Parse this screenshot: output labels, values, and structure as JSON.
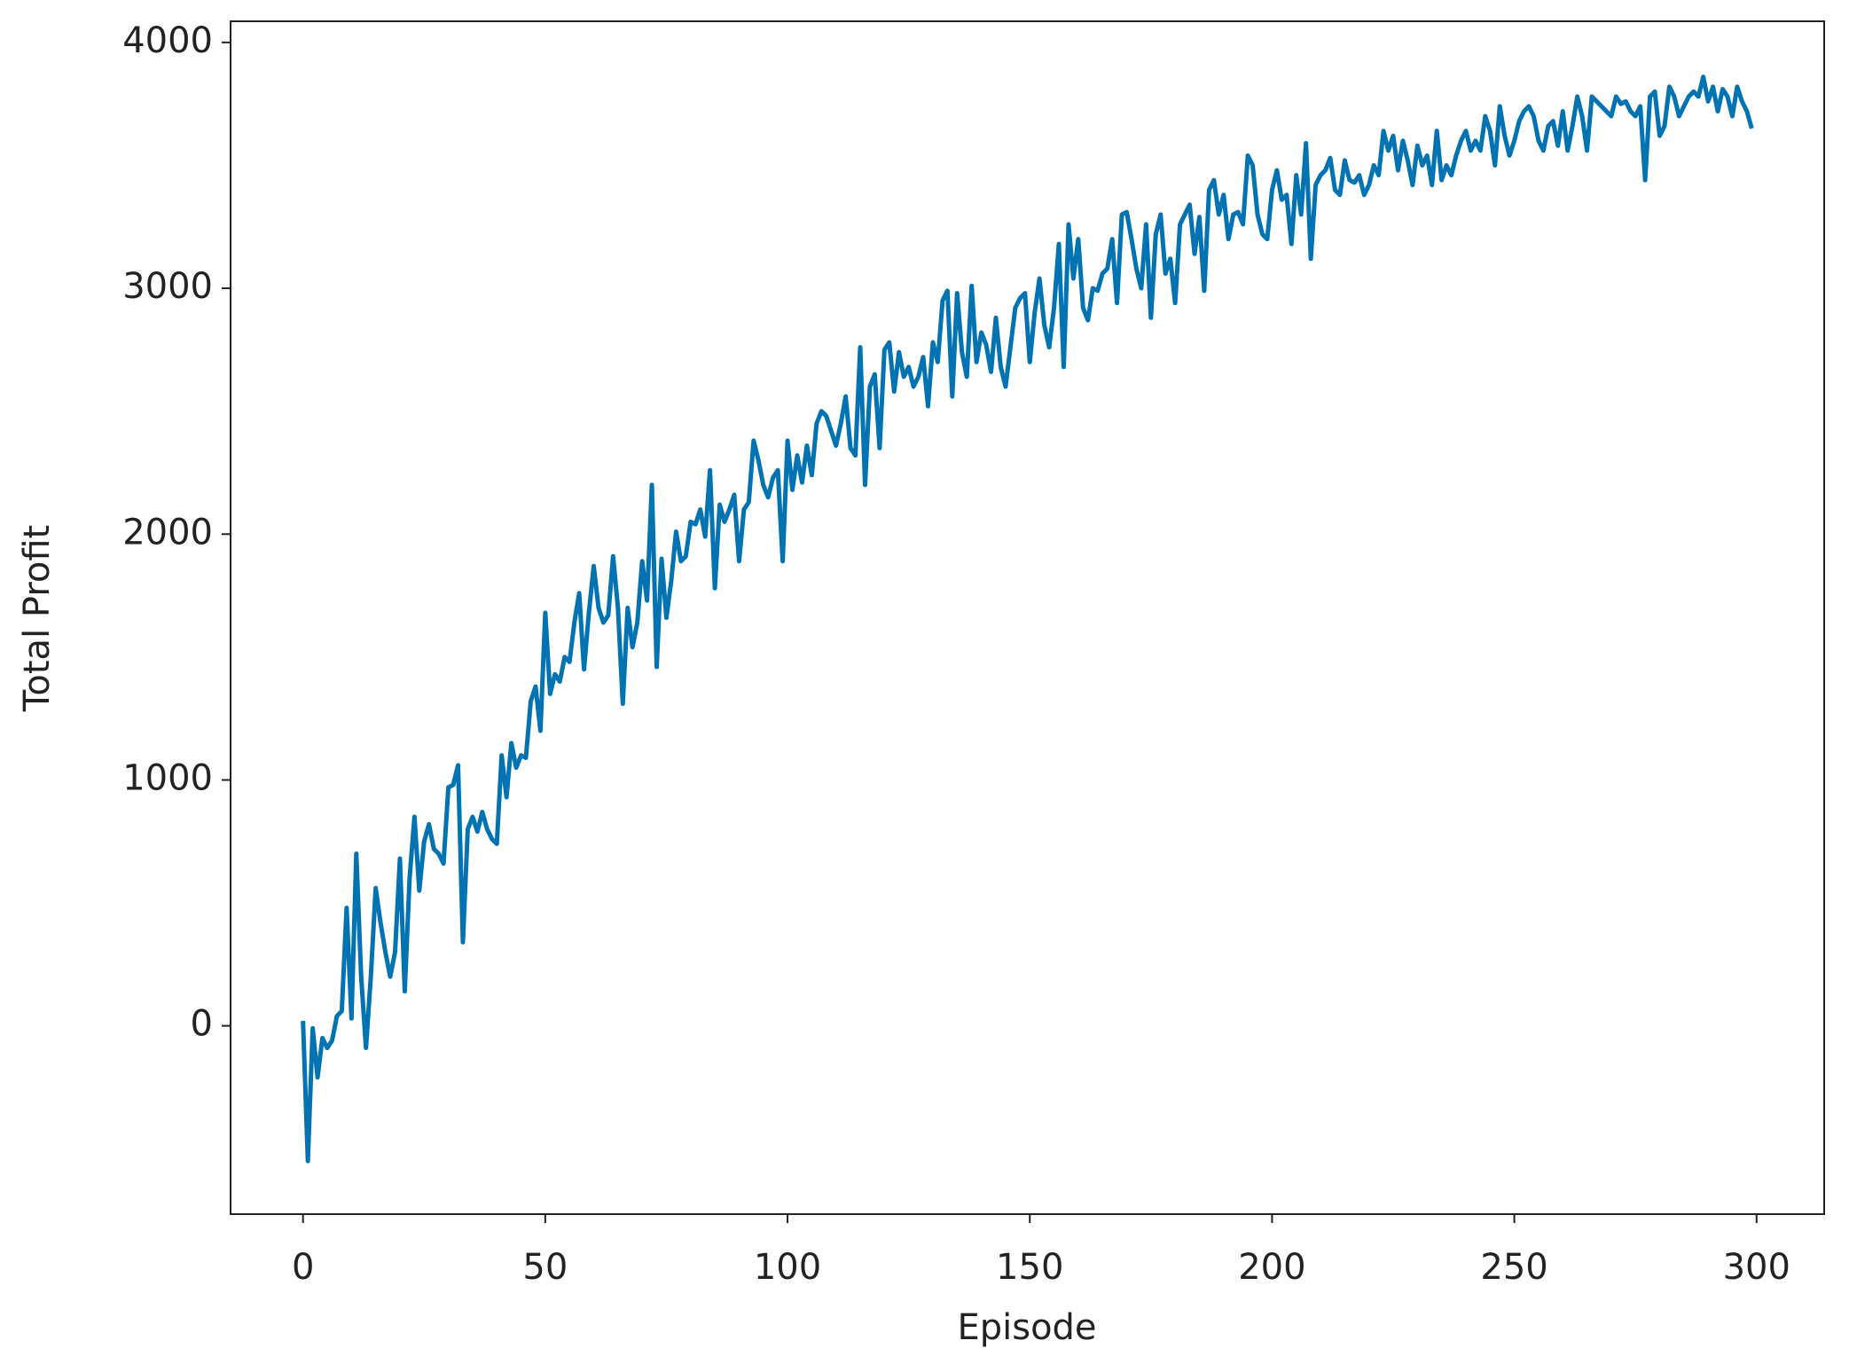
{
  "chart_data": {
    "type": "line",
    "x_label": "Episode",
    "y_label": "Total Profit",
    "x": [
      0,
      1,
      2,
      3,
      4,
      5,
      6,
      7,
      8,
      9,
      10,
      11,
      12,
      13,
      14,
      15,
      16,
      17,
      18,
      19,
      20,
      21,
      22,
      23,
      24,
      25,
      26,
      27,
      28,
      29,
      30,
      31,
      32,
      33,
      34,
      35,
      36,
      37,
      38,
      39,
      40,
      41,
      42,
      43,
      44,
      45,
      46,
      47,
      48,
      49,
      50,
      51,
      52,
      53,
      54,
      55,
      56,
      57,
      58,
      59,
      60,
      61,
      62,
      63,
      64,
      65,
      66,
      67,
      68,
      69,
      70,
      71,
      72,
      73,
      74,
      75,
      76,
      77,
      78,
      79,
      80,
      81,
      82,
      83,
      84,
      85,
      86,
      87,
      88,
      89,
      90,
      91,
      92,
      93,
      94,
      95,
      96,
      97,
      98,
      99,
      100,
      101,
      102,
      103,
      104,
      105,
      106,
      107,
      108,
      109,
      110,
      111,
      112,
      113,
      114,
      115,
      116,
      117,
      118,
      119,
      120,
      121,
      122,
      123,
      124,
      125,
      126,
      127,
      128,
      129,
      130,
      131,
      132,
      133,
      134,
      135,
      136,
      137,
      138,
      139,
      140,
      141,
      142,
      143,
      144,
      145,
      146,
      147,
      148,
      149,
      150,
      151,
      152,
      153,
      154,
      155,
      156,
      157,
      158,
      159,
      160,
      161,
      162,
      163,
      164,
      165,
      166,
      167,
      168,
      169,
      170,
      171,
      172,
      173,
      174,
      175,
      176,
      177,
      178,
      179,
      180,
      181,
      182,
      183,
      184,
      185,
      186,
      187,
      188,
      189,
      190,
      191,
      192,
      193,
      194,
      195,
      196,
      197,
      198,
      199,
      200,
      201,
      202,
      203,
      204,
      205,
      206,
      207,
      208,
      209,
      210,
      211,
      212,
      213,
      214,
      215,
      216,
      217,
      218,
      219,
      220,
      221,
      222,
      223,
      224,
      225,
      226,
      227,
      228,
      229,
      230,
      231,
      232,
      233,
      234,
      235,
      236,
      237,
      238,
      239,
      240,
      241,
      242,
      243,
      244,
      245,
      246,
      247,
      248,
      249,
      250,
      251,
      252,
      253,
      254,
      255,
      256,
      257,
      258,
      259,
      260,
      261,
      262,
      263,
      264,
      265,
      266,
      267,
      268,
      269,
      270,
      271,
      272,
      273,
      274,
      275,
      276,
      277,
      278,
      279,
      280,
      281,
      282,
      283,
      284,
      285,
      286,
      287,
      288,
      289,
      290,
      291,
      292,
      293,
      294,
      295,
      296,
      297,
      298,
      299
    ],
    "series": [
      {
        "color": "#0173b2",
        "values": [
          20,
          -550,
          -10,
          -210,
          -50,
          -90,
          -60,
          40,
          60,
          480,
          30,
          700,
          200,
          -90,
          200,
          560,
          420,
          300,
          200,
          300,
          680,
          140,
          600,
          850,
          550,
          750,
          820,
          720,
          700,
          660,
          970,
          980,
          1060,
          340,
          800,
          850,
          790,
          870,
          800,
          760,
          740,
          1100,
          930,
          1150,
          1050,
          1100,
          1090,
          1320,
          1380,
          1200,
          1680,
          1350,
          1430,
          1400,
          1500,
          1480,
          1640,
          1760,
          1450,
          1680,
          1870,
          1700,
          1640,
          1670,
          1910,
          1700,
          1310,
          1700,
          1540,
          1640,
          1890,
          1730,
          2200,
          1460,
          1900,
          1660,
          1810,
          2010,
          1890,
          1910,
          2050,
          2040,
          2100,
          1990,
          2260,
          1780,
          2120,
          2050,
          2100,
          2160,
          1890,
          2100,
          2130,
          2380,
          2300,
          2200,
          2150,
          2230,
          2260,
          1890,
          2380,
          2180,
          2320,
          2210,
          2360,
          2240,
          2450,
          2500,
          2480,
          2420,
          2360,
          2450,
          2560,
          2350,
          2320,
          2760,
          2200,
          2600,
          2650,
          2350,
          2750,
          2780,
          2580,
          2740,
          2640,
          2680,
          2600,
          2640,
          2720,
          2520,
          2780,
          2700,
          2950,
          2990,
          2560,
          2980,
          2740,
          2640,
          3010,
          2700,
          2820,
          2770,
          2660,
          2880,
          2680,
          2600,
          2760,
          2920,
          2960,
          2980,
          2700,
          2900,
          3040,
          2850,
          2760,
          2920,
          3180,
          2680,
          3260,
          3040,
          3200,
          2920,
          2870,
          3000,
          2990,
          3060,
          3080,
          3200,
          2940,
          3300,
          3310,
          3200,
          3080,
          3000,
          3260,
          2880,
          3220,
          3300,
          3060,
          3120,
          2940,
          3260,
          3300,
          3340,
          3140,
          3290,
          2990,
          3400,
          3440,
          3300,
          3380,
          3200,
          3300,
          3310,
          3260,
          3540,
          3500,
          3300,
          3220,
          3200,
          3400,
          3480,
          3360,
          3380,
          3180,
          3460,
          3300,
          3590,
          3120,
          3420,
          3460,
          3480,
          3530,
          3400,
          3380,
          3520,
          3440,
          3430,
          3460,
          3380,
          3420,
          3500,
          3460,
          3640,
          3560,
          3620,
          3480,
          3600,
          3520,
          3420,
          3580,
          3500,
          3540,
          3420,
          3640,
          3440,
          3500,
          3460,
          3540,
          3600,
          3640,
          3560,
          3600,
          3560,
          3700,
          3640,
          3500,
          3740,
          3620,
          3540,
          3600,
          3680,
          3720,
          3740,
          3700,
          3600,
          3560,
          3660,
          3680,
          3580,
          3720,
          3560,
          3660,
          3780,
          3700,
          3560,
          3780,
          3760,
          3740,
          3720,
          3700,
          3780,
          3750,
          3760,
          3720,
          3700,
          3740,
          3440,
          3780,
          3800,
          3620,
          3660,
          3820,
          3780,
          3700,
          3740,
          3780,
          3800,
          3780,
          3860,
          3760,
          3820,
          3720,
          3810,
          3780,
          3700,
          3820,
          3760,
          3720,
          3650
        ]
      }
    ],
    "xlim": [
      -14.95,
      313.95
    ],
    "ylim": [
      -766,
      4086
    ],
    "xticks": [
      0,
      50,
      100,
      150,
      200,
      250,
      300
    ],
    "yticks": [
      0,
      1000,
      2000,
      3000,
      4000
    ]
  }
}
